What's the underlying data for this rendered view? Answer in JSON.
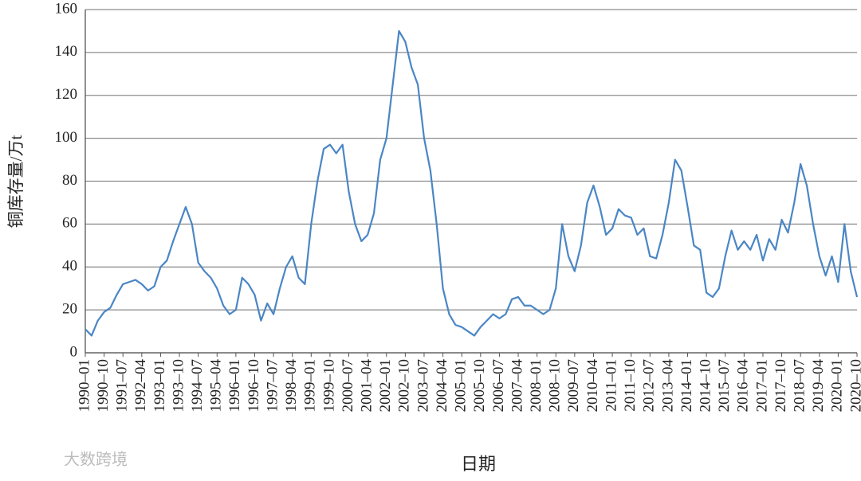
{
  "chart_data": {
    "type": "line",
    "y_label": "铜库存量/万t",
    "x_label": "日期",
    "watermark": "大数跨境",
    "categories": [
      "1990–01",
      null,
      null,
      "1990–10",
      null,
      null,
      "1991–07",
      null,
      null,
      "1992–04",
      null,
      null,
      "1993–01",
      null,
      null,
      "1993–10",
      null,
      null,
      "1994–07",
      null,
      null,
      "1995–04",
      null,
      null,
      "1996–01",
      null,
      null,
      "1996–10",
      null,
      null,
      "1997–07",
      null,
      null,
      "1998–04",
      null,
      null,
      "1999–01",
      null,
      null,
      "1999–10",
      null,
      null,
      "2000–07",
      null,
      null,
      "2001–04",
      null,
      null,
      "2002–01",
      null,
      null,
      "2002–10",
      null,
      null,
      "2003–07",
      null,
      null,
      "2004–04",
      null,
      null,
      "2005–01",
      null,
      null,
      "2005–10",
      null,
      null,
      "2006–07",
      null,
      null,
      "2007–04",
      null,
      null,
      "2008–01",
      null,
      null,
      "2008–10",
      null,
      null,
      "2009–07",
      null,
      null,
      "2010–04",
      null,
      null,
      "2011–01",
      null,
      null,
      "2011–10",
      null,
      null,
      "2012–07",
      null,
      null,
      "2013–04",
      null,
      null,
      "2014–01",
      null,
      null,
      "2014–10",
      null,
      null,
      "2015–07",
      null,
      null,
      "2016–04",
      null,
      null,
      "2017–01",
      null,
      null,
      "2017–10",
      null,
      null,
      "2018–07",
      null,
      null,
      "2019–04",
      null,
      null,
      "2020–01",
      null,
      null,
      "2020–10"
    ],
    "series": [
      {
        "color": "#4a86c5",
        "values": [
          11,
          8,
          15,
          19,
          21,
          27,
          32,
          33,
          34,
          32,
          29,
          31,
          40,
          43,
          52,
          60,
          68,
          60,
          42,
          38,
          35,
          30,
          22,
          18,
          20,
          35,
          32,
          27,
          15,
          23,
          18,
          30,
          40,
          45,
          35,
          32,
          60,
          80,
          95,
          97,
          93,
          97,
          75,
          60,
          52,
          55,
          65,
          90,
          100,
          125,
          150,
          145,
          133,
          125,
          100,
          85,
          60,
          30,
          18,
          13,
          12,
          10,
          8,
          12,
          15,
          18,
          16,
          18,
          25,
          26,
          22,
          22,
          20,
          18,
          20,
          30,
          60,
          45,
          38,
          50,
          70,
          78,
          68,
          55,
          58,
          67,
          64,
          63,
          55,
          58,
          45,
          44,
          55,
          70,
          90,
          85,
          68,
          50,
          48,
          28,
          26,
          30,
          45,
          57,
          48,
          52,
          48,
          55,
          43,
          53,
          48,
          62,
          56,
          70,
          88,
          78,
          60,
          45,
          36,
          45,
          33,
          60,
          38,
          26
        ]
      }
    ],
    "ylim": [
      0,
      160
    ],
    "yticks": [
      0,
      20,
      40,
      60,
      80,
      100,
      120,
      140,
      160
    ],
    "grid": true
  }
}
